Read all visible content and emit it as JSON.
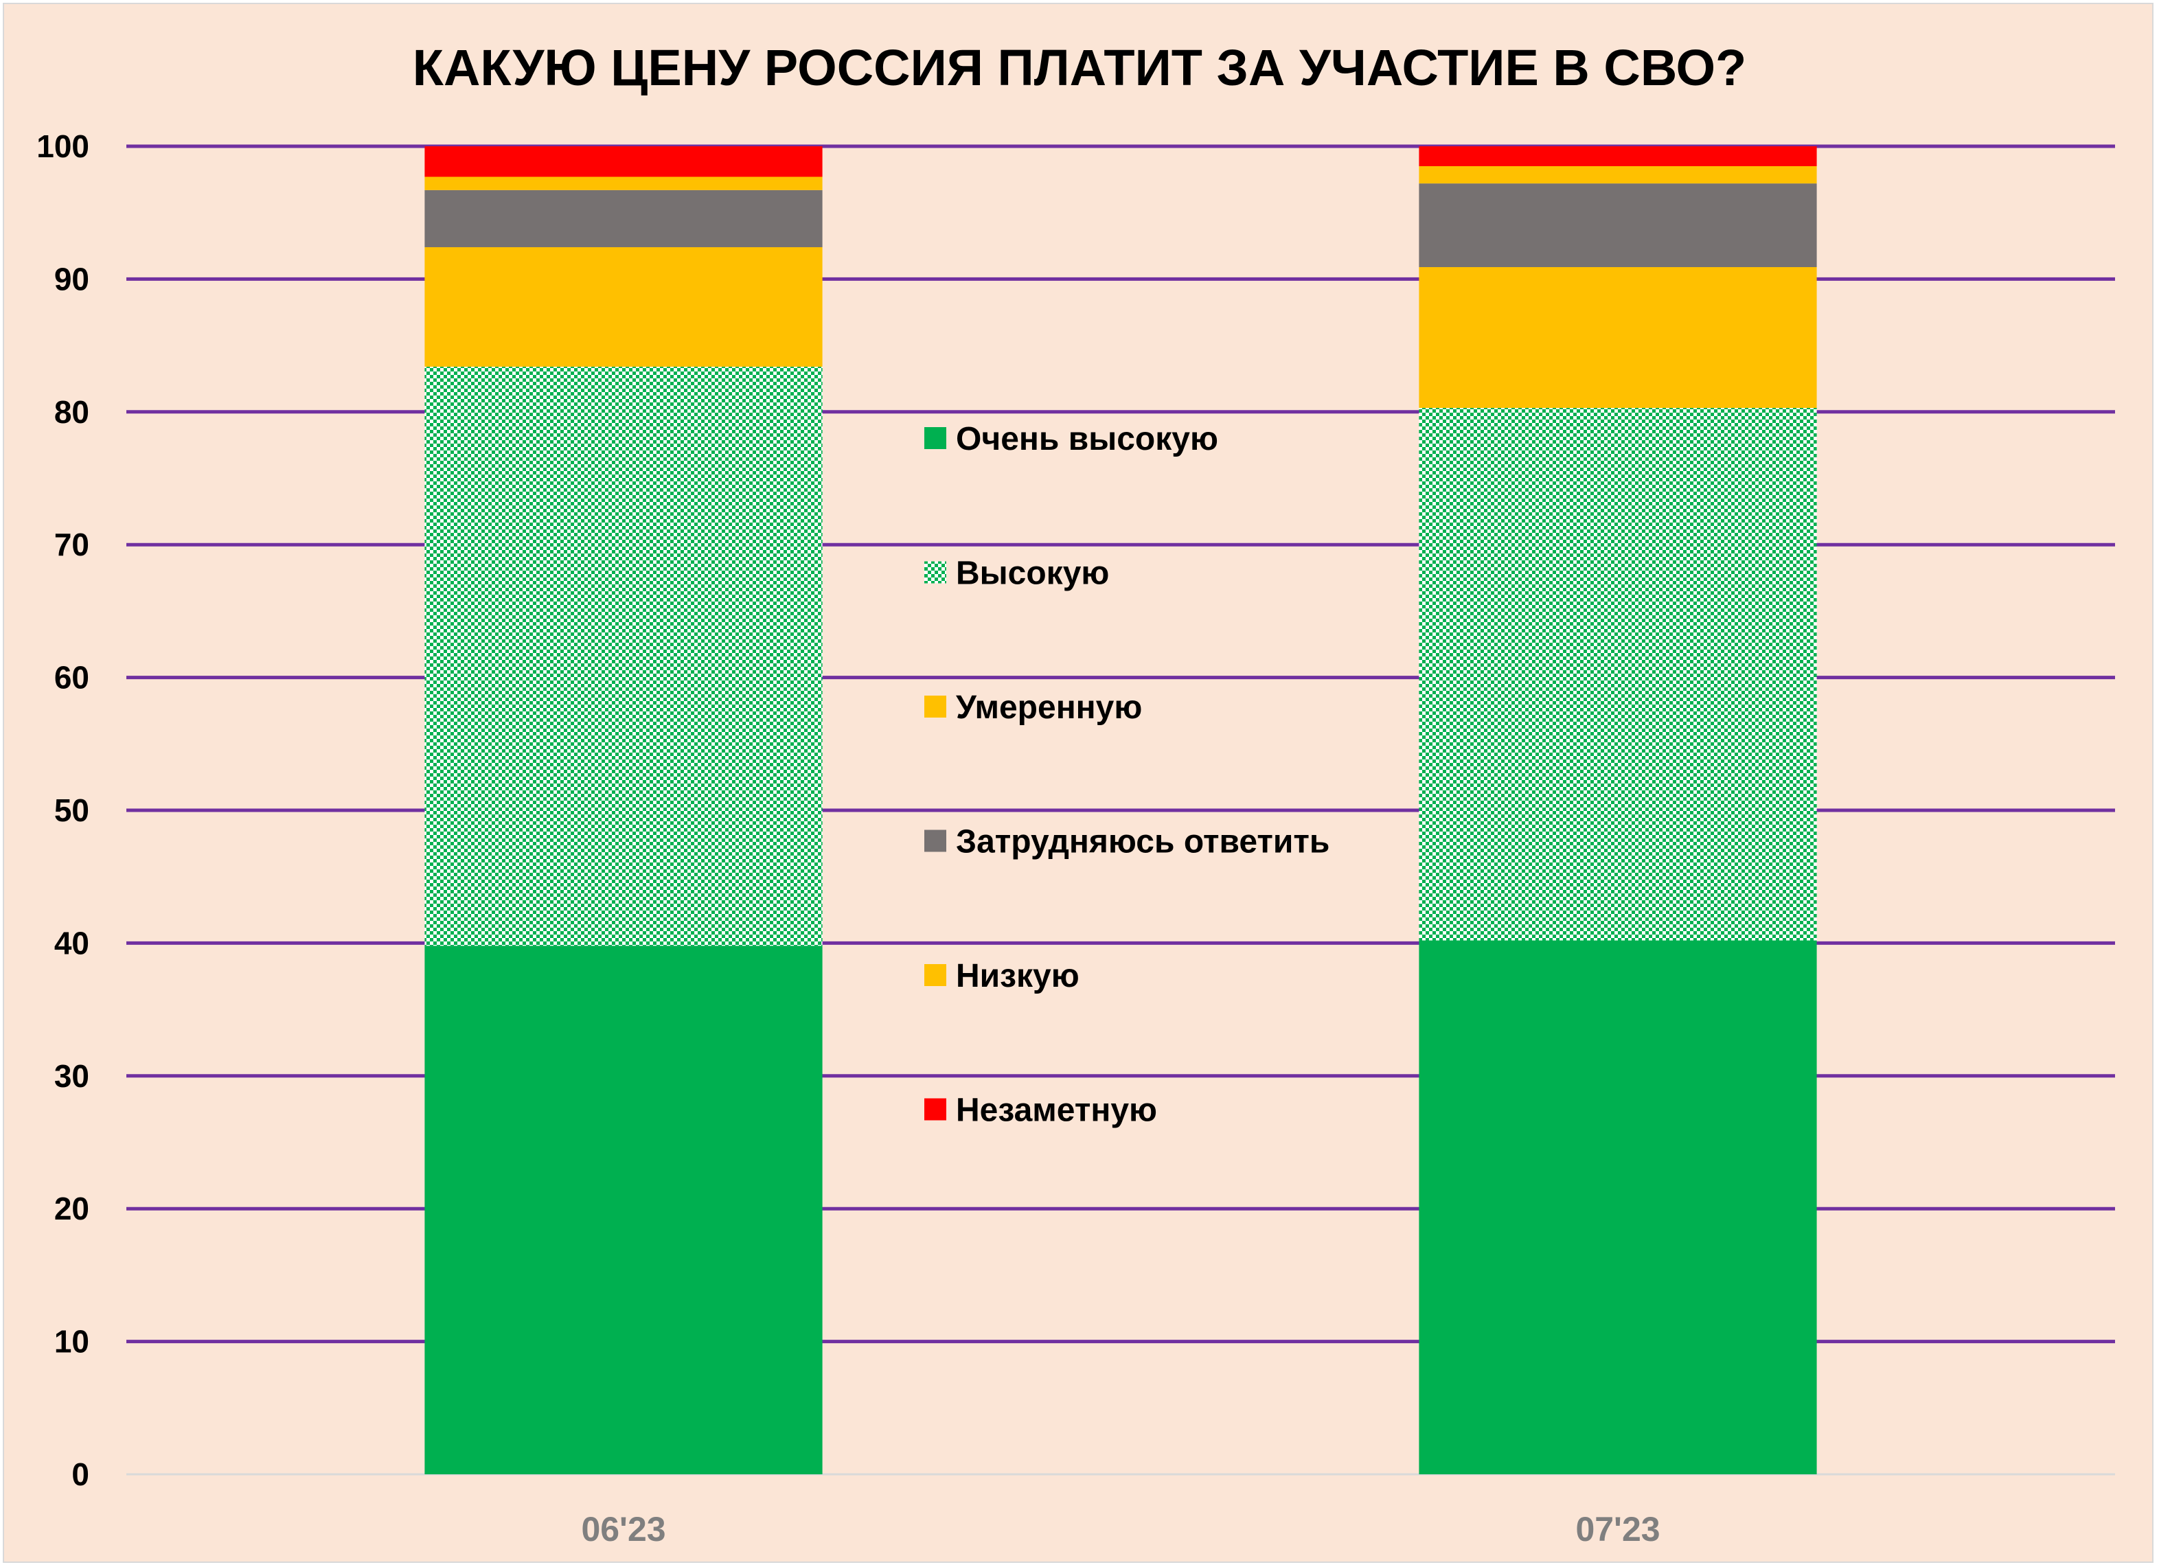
{
  "chart_data": {
    "type": "bar",
    "stacked": true,
    "title": "КАКУЮ ЦЕНУ РОССИЯ ПЛАТИТ ЗА УЧАСТИЕ В СВО?",
    "categories": [
      "06'23",
      "07'23"
    ],
    "series": [
      {
        "name": "Очень высокую",
        "values": [
          39.8,
          40.2
        ],
        "color": "#00b050",
        "pattern": "solid"
      },
      {
        "name": "Высокую",
        "values": [
          43.6,
          40.1
        ],
        "color": "#00b050",
        "pattern": "checker"
      },
      {
        "name": "Умеренную",
        "values": [
          9.0,
          10.6
        ],
        "color": "#ffc000",
        "pattern": "solid"
      },
      {
        "name": "Затрудняюсь ответить",
        "values": [
          4.3,
          6.3
        ],
        "color": "#767171",
        "pattern": "solid"
      },
      {
        "name": "Низкую",
        "values": [
          1.0,
          1.3
        ],
        "color": "#ffc000",
        "pattern": "solid"
      },
      {
        "name": "Незаметную",
        "values": [
          2.3,
          1.5
        ],
        "color": "#ff0000",
        "pattern": "solid"
      }
    ],
    "ylim": [
      0,
      100
    ],
    "yticks": [
      0,
      10,
      20,
      30,
      40,
      50,
      60,
      70,
      80,
      90,
      100
    ],
    "grid": true,
    "grid_color": "#7030a0",
    "legend_position": "center",
    "background": "#fbe5d6"
  }
}
